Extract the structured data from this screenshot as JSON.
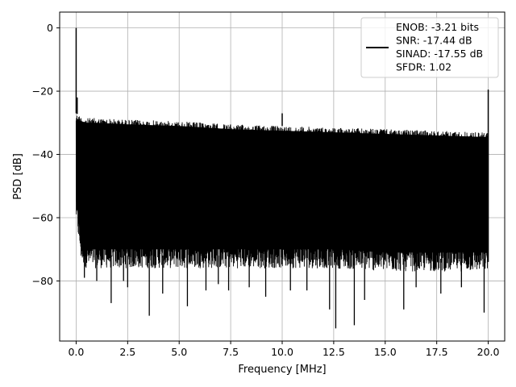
{
  "chart_data": {
    "type": "line",
    "xlabel": "Frequency [MHz]",
    "ylabel": "PSD [dB]",
    "xlim": [
      -0.8,
      20.8
    ],
    "ylim": [
      -99,
      5
    ],
    "xticks": [
      0.0,
      2.5,
      5.0,
      7.5,
      10.0,
      12.5,
      15.0,
      17.5,
      20.0
    ],
    "xtick_labels": [
      "0.0",
      "2.5",
      "5.0",
      "7.5",
      "10.0",
      "12.5",
      "15.0",
      "17.5",
      "20.0"
    ],
    "yticks": [
      0,
      -20,
      -40,
      -60,
      -80
    ],
    "ytick_labels": [
      "0",
      "−20",
      "−40",
      "−60",
      "−80"
    ],
    "grid": true,
    "legend_position": "top-right",
    "series": [
      {
        "name": "ENOB: -3.21 bits\nSNR: -17.44 dB\nSINAD: -17.55 dB\nSFDR: 1.02",
        "color": "#000000",
        "envelope_x": [
          0.0,
          0.25,
          0.5,
          1.0,
          2.5,
          5.0,
          7.5,
          10.0,
          12.5,
          15.0,
          17.5,
          19.9
        ],
        "envelope_top": [
          -27,
          -28,
          -28.5,
          -28.5,
          -29,
          -29.5,
          -30.5,
          -31,
          -31.5,
          -32,
          -32.5,
          -33
        ],
        "envelope_bottom": [
          -57,
          -70,
          -72,
          -72,
          -72,
          -72,
          -72,
          -72,
          -72,
          -73,
          -73,
          -73
        ],
        "peaks": [
          {
            "x": 0.0,
            "y": 0.0
          },
          {
            "x": 0.05,
            "y": -22
          },
          {
            "x": 10.0,
            "y": -27
          },
          {
            "x": 20.0,
            "y": -19.5
          }
        ],
        "dips": [
          {
            "x": 0.4,
            "y": -79
          },
          {
            "x": 1.0,
            "y": -80
          },
          {
            "x": 1.7,
            "y": -87
          },
          {
            "x": 2.3,
            "y": -80
          },
          {
            "x": 2.5,
            "y": -82
          },
          {
            "x": 3.55,
            "y": -91
          },
          {
            "x": 4.2,
            "y": -84
          },
          {
            "x": 5.4,
            "y": -88
          },
          {
            "x": 6.3,
            "y": -83
          },
          {
            "x": 6.9,
            "y": -81
          },
          {
            "x": 7.4,
            "y": -83
          },
          {
            "x": 8.4,
            "y": -82
          },
          {
            "x": 9.2,
            "y": -85
          },
          {
            "x": 10.4,
            "y": -83
          },
          {
            "x": 11.2,
            "y": -83
          },
          {
            "x": 12.3,
            "y": -89
          },
          {
            "x": 12.6,
            "y": -95
          },
          {
            "x": 13.5,
            "y": -94
          },
          {
            "x": 14.0,
            "y": -86
          },
          {
            "x": 15.9,
            "y": -89
          },
          {
            "x": 16.5,
            "y": -82
          },
          {
            "x": 17.7,
            "y": -84
          },
          {
            "x": 18.7,
            "y": -82
          },
          {
            "x": 19.8,
            "y": -90
          }
        ],
        "tail": {
          "x": 20.0,
          "y": -74
        }
      }
    ]
  }
}
